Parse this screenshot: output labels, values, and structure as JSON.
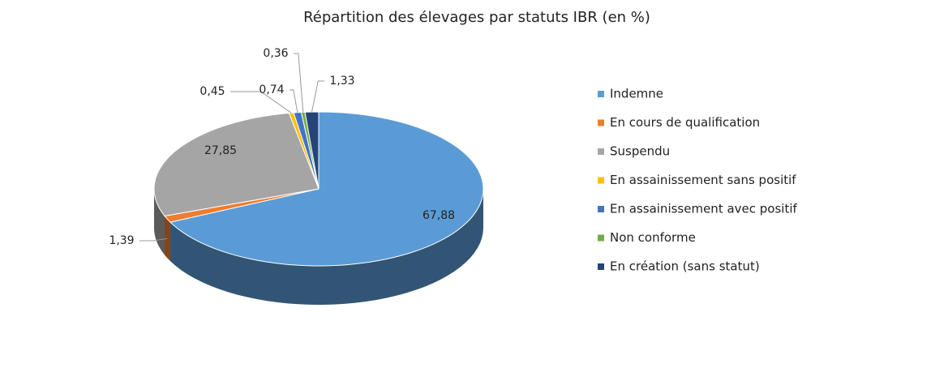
{
  "chart_data": {
    "type": "pie",
    "title": "Répartition des élevages par statuts IBR (en %)",
    "categories": [
      "Indemne",
      "En cours de qualification",
      "Suspendu",
      "En assainissement sans positif",
      "En assainissement avec positif",
      "Non conforme",
      "En création (sans statut)"
    ],
    "values": [
      67.88,
      1.39,
      27.85,
      0.45,
      0.74,
      0.36,
      1.33
    ],
    "value_labels": [
      "67,88",
      "1,39",
      "27,85",
      "0,45",
      "0,74",
      "0,36",
      "1,33"
    ],
    "colors": [
      "#5b9bd5",
      "#ed7d31",
      "#a5a5a5",
      "#ffc000",
      "#4472c4",
      "#70ad47",
      "#264478"
    ],
    "legend": "right"
  }
}
